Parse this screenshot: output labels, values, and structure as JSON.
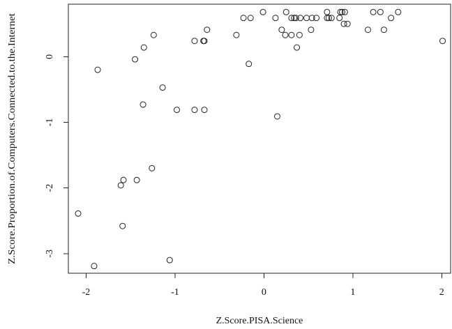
{
  "chart_data": {
    "type": "scatter",
    "title": "",
    "xlabel": "Z.Score.PISA.Science",
    "ylabel": "Z.Score.Proportion.of.Computers.Connected.to.the.Internet",
    "xlim": [
      -2.2,
      2.1
    ],
    "ylim": [
      -3.3,
      0.8
    ],
    "xticks": [
      -2,
      -1,
      0,
      1,
      2
    ],
    "yticks": [
      -3,
      -2,
      -1,
      0
    ],
    "xtick_labels": [
      "-2",
      "-1",
      "0",
      "1",
      "2"
    ],
    "ytick_labels": [
      "-3",
      "-2",
      "-1",
      "0"
    ],
    "grid": false,
    "legend": "none",
    "marker": "open-circle",
    "series": [
      {
        "points": [
          {
            "x": -2.09,
            "y": -2.39
          },
          {
            "x": -1.91,
            "y": -3.19
          },
          {
            "x": -1.87,
            "y": -0.2
          },
          {
            "x": -1.61,
            "y": -1.96
          },
          {
            "x": -1.58,
            "y": -1.88
          },
          {
            "x": -1.59,
            "y": -2.58
          },
          {
            "x": -1.45,
            "y": -0.04
          },
          {
            "x": -1.43,
            "y": -1.88
          },
          {
            "x": -1.36,
            "y": -0.73
          },
          {
            "x": -1.35,
            "y": 0.14
          },
          {
            "x": -1.26,
            "y": -1.7
          },
          {
            "x": -1.24,
            "y": 0.33
          },
          {
            "x": -1.14,
            "y": -0.47
          },
          {
            "x": -1.06,
            "y": -3.1
          },
          {
            "x": -0.98,
            "y": -0.81
          },
          {
            "x": -0.78,
            "y": -0.81
          },
          {
            "x": -0.78,
            "y": 0.24
          },
          {
            "x": -0.68,
            "y": 0.24
          },
          {
            "x": -0.67,
            "y": -0.81
          },
          {
            "x": -0.67,
            "y": 0.24
          },
          {
            "x": -0.64,
            "y": 0.41
          },
          {
            "x": -0.31,
            "y": 0.33
          },
          {
            "x": -0.23,
            "y": 0.59
          },
          {
            "x": -0.17,
            "y": -0.11
          },
          {
            "x": -0.15,
            "y": 0.59
          },
          {
            "x": -0.01,
            "y": 0.68
          },
          {
            "x": 0.13,
            "y": 0.59
          },
          {
            "x": 0.15,
            "y": -0.91
          },
          {
            "x": 0.2,
            "y": 0.41
          },
          {
            "x": 0.24,
            "y": 0.33
          },
          {
            "x": 0.25,
            "y": 0.68
          },
          {
            "x": 0.31,
            "y": 0.33
          },
          {
            "x": 0.31,
            "y": 0.59
          },
          {
            "x": 0.34,
            "y": 0.59
          },
          {
            "x": 0.36,
            "y": 0.59
          },
          {
            "x": 0.37,
            "y": 0.14
          },
          {
            "x": 0.4,
            "y": 0.33
          },
          {
            "x": 0.41,
            "y": 0.59
          },
          {
            "x": 0.48,
            "y": 0.59
          },
          {
            "x": 0.53,
            "y": 0.41
          },
          {
            "x": 0.54,
            "y": 0.59
          },
          {
            "x": 0.59,
            "y": 0.59
          },
          {
            "x": 0.71,
            "y": 0.59
          },
          {
            "x": 0.71,
            "y": 0.68
          },
          {
            "x": 0.73,
            "y": 0.59
          },
          {
            "x": 0.76,
            "y": 0.59
          },
          {
            "x": 0.85,
            "y": 0.59
          },
          {
            "x": 0.86,
            "y": 0.68
          },
          {
            "x": 0.88,
            "y": 0.68
          },
          {
            "x": 0.9,
            "y": 0.5
          },
          {
            "x": 0.91,
            "y": 0.68
          },
          {
            "x": 0.94,
            "y": 0.5
          },
          {
            "x": 1.17,
            "y": 0.41
          },
          {
            "x": 1.23,
            "y": 0.68
          },
          {
            "x": 1.31,
            "y": 0.68
          },
          {
            "x": 1.35,
            "y": 0.41
          },
          {
            "x": 1.43,
            "y": 0.59
          },
          {
            "x": 1.51,
            "y": 0.68
          },
          {
            "x": 2.01,
            "y": 0.24
          }
        ]
      }
    ]
  }
}
